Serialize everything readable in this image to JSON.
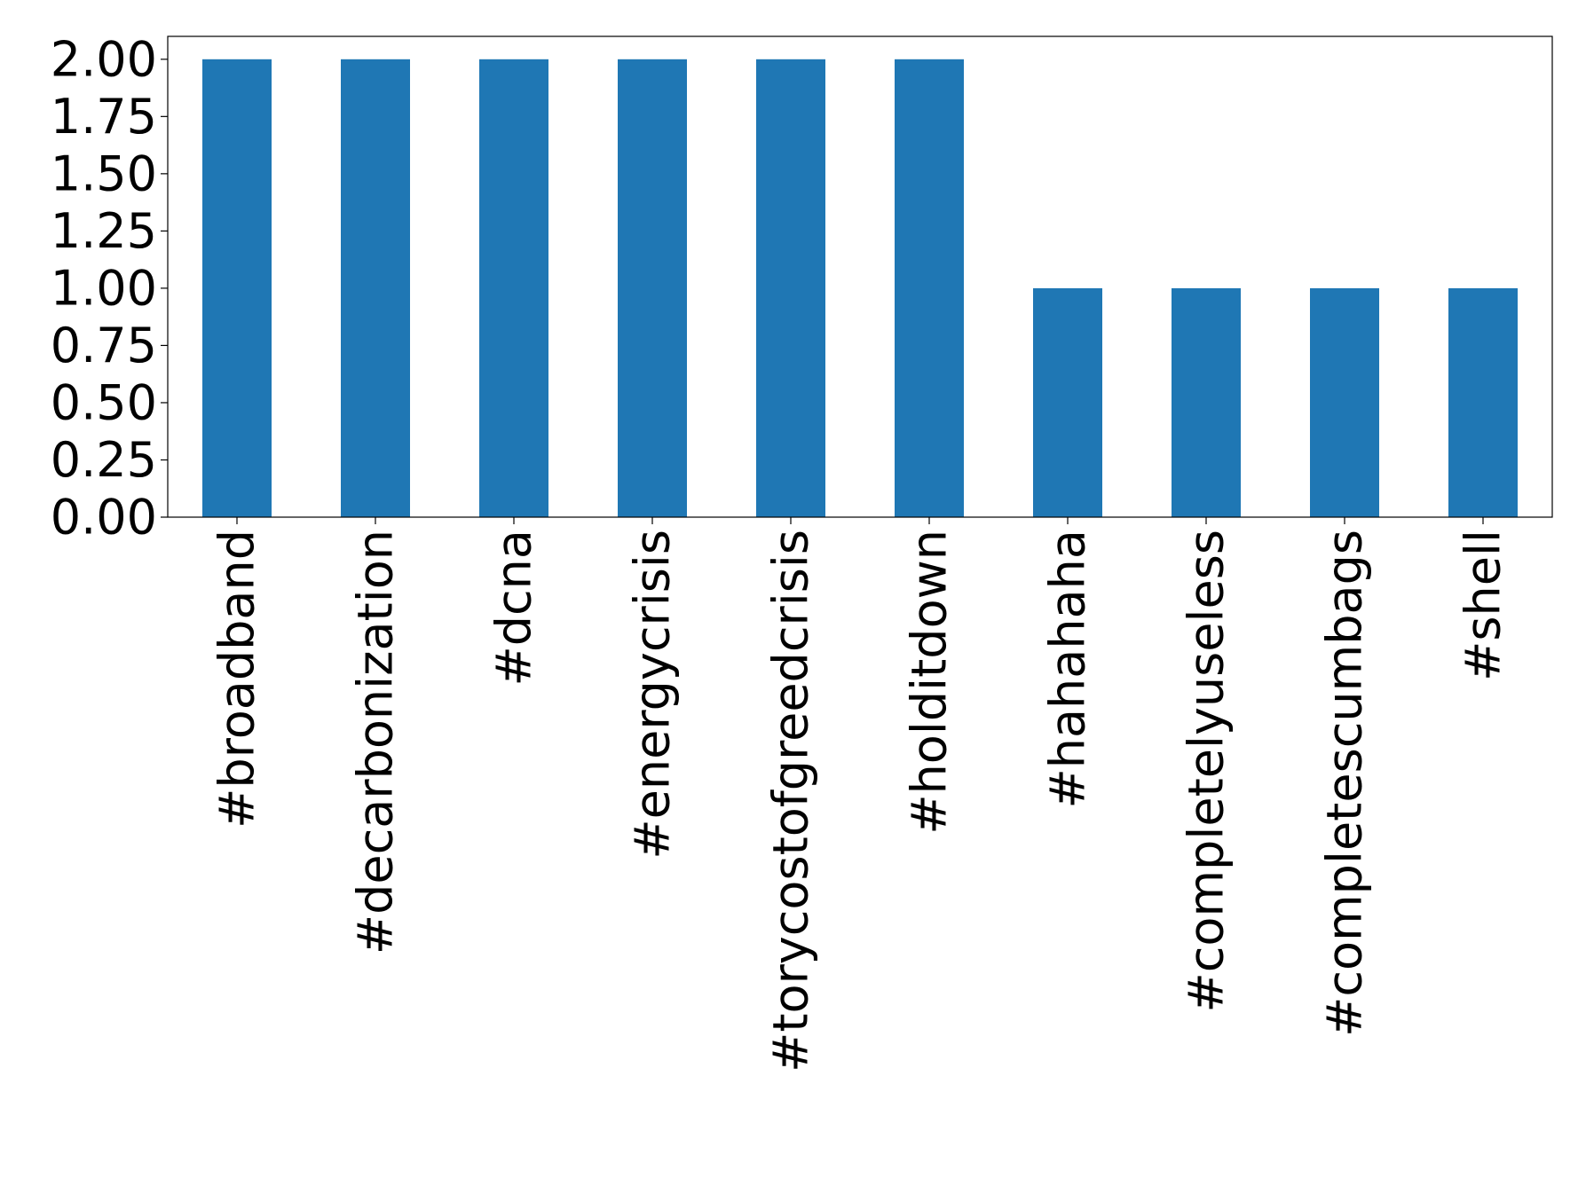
{
  "chart_data": {
    "type": "bar",
    "categories": [
      "#broadband",
      "#decarbonization",
      "#dcna",
      "#energycrisis",
      "#torycostofgreedcrisis",
      "#holditdown",
      "#hahahaha",
      "#completelyuseless",
      "#completescumbags",
      "#shell"
    ],
    "values": [
      2,
      2,
      2,
      2,
      2,
      2,
      1,
      1,
      1,
      1
    ],
    "color": "#1f77b4",
    "ylim": [
      0,
      2.1
    ],
    "yticks": [
      {
        "value": 0,
        "label": "0.00"
      },
      {
        "value": 0.25,
        "label": "0.25"
      },
      {
        "value": 0.5,
        "label": "0.50"
      },
      {
        "value": 0.75,
        "label": "0.75"
      },
      {
        "value": 1,
        "label": "1.00"
      },
      {
        "value": 1.25,
        "label": "1.25"
      },
      {
        "value": 1.5,
        "label": "1.50"
      },
      {
        "value": 1.75,
        "label": "1.75"
      },
      {
        "value": 2,
        "label": "2.00"
      }
    ],
    "grid": false
  }
}
